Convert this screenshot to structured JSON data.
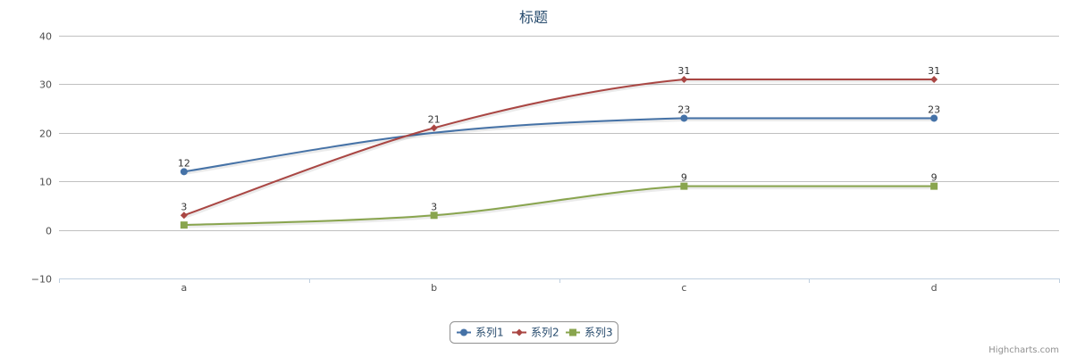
{
  "chart_data": {
    "type": "line",
    "title": "标题",
    "categories": [
      "a",
      "b",
      "c",
      "d"
    ],
    "ylim": [
      -10,
      40
    ],
    "yticks": [
      -10,
      0,
      10,
      20,
      30,
      40
    ],
    "smooth": true,
    "grid": true,
    "legend_position": "bottom-center",
    "series": [
      {
        "name": "系列1",
        "values": [
          12,
          null,
          23,
          23
        ],
        "labels": [
          12,
          null,
          23,
          23
        ],
        "color": "#4572A7",
        "marker": "circle",
        "smooth_through": 20
      },
      {
        "name": "系列2",
        "values": [
          3,
          21,
          31,
          31
        ],
        "labels": [
          3,
          21,
          31,
          31
        ],
        "color": "#AA4643",
        "marker": "diamond"
      },
      {
        "name": "系列3",
        "values": [
          1,
          3,
          9,
          9
        ],
        "labels": [
          null,
          3,
          9,
          9
        ],
        "color": "#89A54E",
        "marker": "square"
      }
    ],
    "credits": "Highcharts.com"
  }
}
